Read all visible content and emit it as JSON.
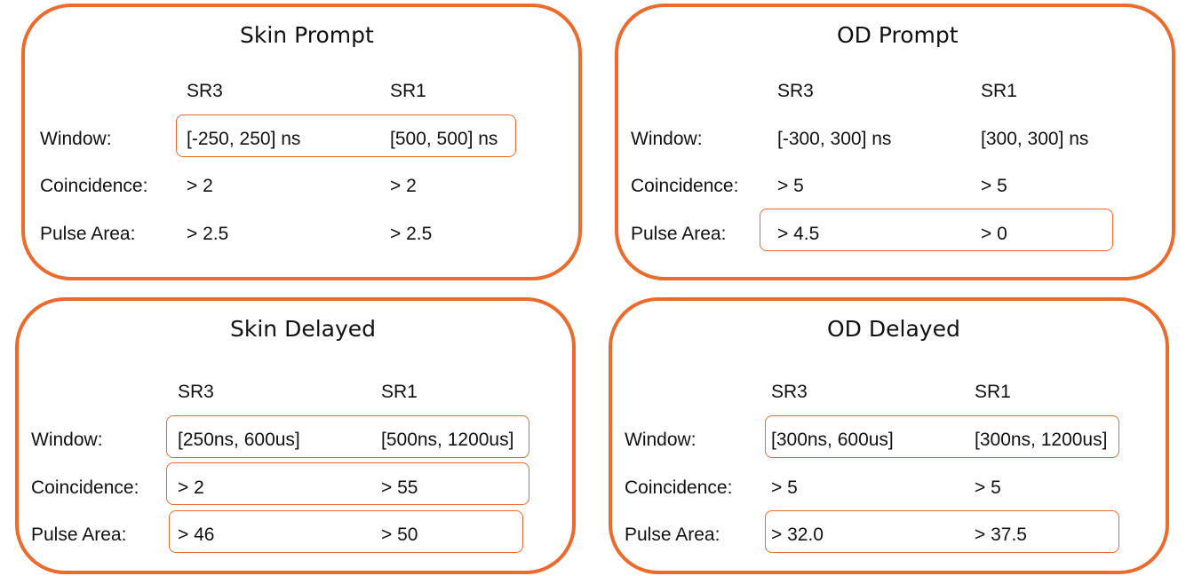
{
  "colors": {
    "accent": "#ec6a2c",
    "text": "#111111",
    "background": "#ffffff"
  },
  "panels": {
    "skin_prompt": {
      "title": "Skin Prompt",
      "col1": "SR3",
      "col2": "SR1",
      "rows": [
        {
          "label": "Window:",
          "v1": "[-250, 250] ns",
          "v2": "[500, 500] ns"
        },
        {
          "label": "Coincidence:",
          "v1": "> 2",
          "v2": "> 2"
        },
        {
          "label": "Pulse Area:",
          "v1": "> 2.5",
          "v2": "> 2.5"
        }
      ]
    },
    "od_prompt": {
      "title": "OD Prompt",
      "col1": "SR3",
      "col2": "SR1",
      "rows": [
        {
          "label": "Window:",
          "v1": "[-300, 300] ns",
          "v2": "[300, 300] ns"
        },
        {
          "label": "Coincidence:",
          "v1": "> 5",
          "v2": "> 5"
        },
        {
          "label": "Pulse Area:",
          "v1": "> 4.5",
          "v2": "> 0"
        }
      ]
    },
    "skin_delayed": {
      "title": "Skin Delayed",
      "col1": "SR3",
      "col2": "SR1",
      "rows": [
        {
          "label": "Window:",
          "v1": "[250ns, 600us]",
          "v2": "[500ns, 1200us]"
        },
        {
          "label": "Coincidence:",
          "v1": "> 2",
          "v2": "> 55"
        },
        {
          "label": "Pulse Area:",
          "v1": "> 46",
          "v2": "> 50"
        }
      ]
    },
    "od_delayed": {
      "title": "OD Delayed",
      "col1": "SR3",
      "col2": "SR1",
      "rows": [
        {
          "label": "Window:",
          "v1": "[300ns, 600us]",
          "v2": "[300ns, 1200us]"
        },
        {
          "label": "Coincidence:",
          "v1": "> 5",
          "v2": "> 5"
        },
        {
          "label": "Pulse Area:",
          "v1": "> 32.0",
          "v2": "> 37.5"
        }
      ]
    }
  }
}
